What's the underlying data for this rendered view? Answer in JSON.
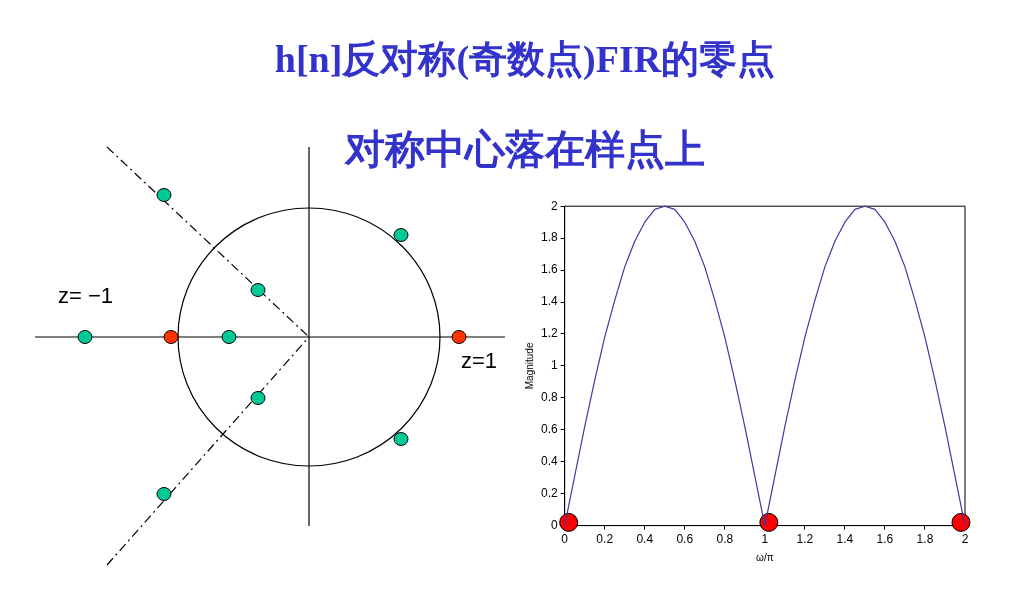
{
  "chart_data": {
    "type": "line",
    "title": "h[n]反对称(奇数点)FIR的零点",
    "subtitle": "对称中心落在样点上",
    "xlabel": "ω/π",
    "ylabel": "Magnitude",
    "xlim": [
      0,
      2
    ],
    "ylim": [
      0,
      2
    ],
    "xticks": [
      0,
      0.2,
      0.4,
      0.6,
      0.8,
      1,
      1.2,
      1.4,
      1.6,
      1.8,
      2
    ],
    "yticks": [
      0,
      0.2,
      0.4,
      0.6,
      0.8,
      1,
      1.2,
      1.4,
      1.6,
      1.8,
      2
    ],
    "grid": false,
    "legend": false,
    "annotations": [
      "z= −1",
      "z=1"
    ],
    "series": [
      {
        "type": "line",
        "color": "#3a3aa0",
        "marker": "none",
        "line_style": "solid",
        "x": [
          0,
          0.05,
          0.1,
          0.15,
          0.2,
          0.25,
          0.3,
          0.35,
          0.4,
          0.45,
          0.5,
          0.55,
          0.6,
          0.65,
          0.7,
          0.75,
          0.8,
          0.85,
          0.9,
          0.95,
          1,
          1.05,
          1.1,
          1.15,
          1.2,
          1.25,
          1.3,
          1.35,
          1.4,
          1.45,
          1.5,
          1.55,
          1.6,
          1.65,
          1.7,
          1.75,
          1.8,
          1.85,
          1.9,
          1.95,
          2
        ],
        "values": [
          0,
          0.31,
          0.62,
          0.91,
          1.18,
          1.41,
          1.62,
          1.78,
          1.9,
          1.98,
          2,
          1.98,
          1.9,
          1.78,
          1.62,
          1.41,
          1.18,
          0.91,
          0.62,
          0.31,
          0,
          0.31,
          0.62,
          0.91,
          1.18,
          1.41,
          1.62,
          1.78,
          1.9,
          1.98,
          2,
          1.98,
          1.9,
          1.78,
          1.62,
          1.41,
          1.18,
          0.91,
          0.62,
          0.31,
          0
        ]
      },
      {
        "type": "scatter",
        "color": "#ff0000",
        "marker": "circle",
        "x": [
          0.02,
          1.02,
          1.98
        ],
        "values": [
          0.02,
          0.02,
          0.02
        ]
      }
    ]
  }
}
